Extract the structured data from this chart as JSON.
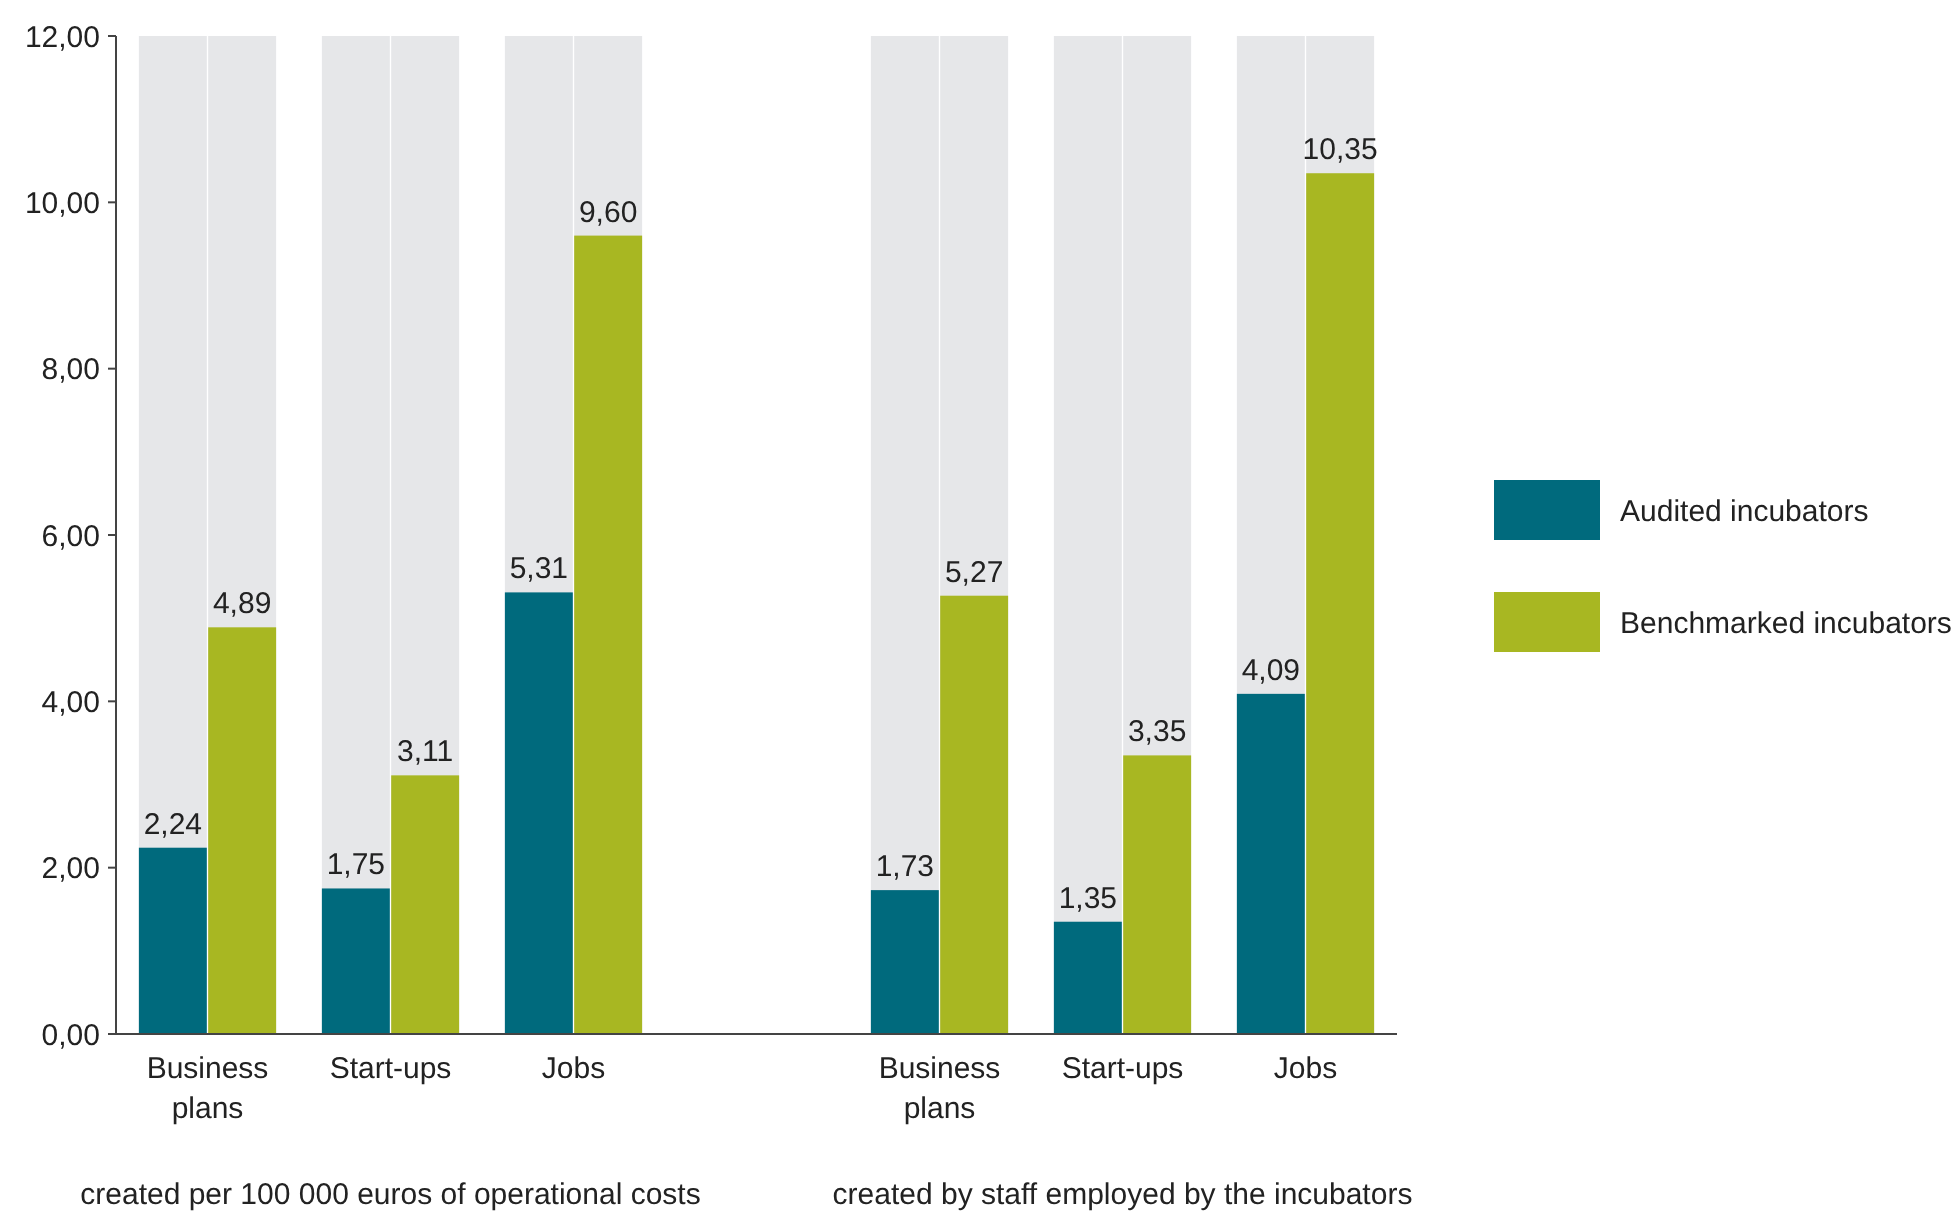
{
  "chart_data": {
    "type": "bar",
    "categories": [
      "Business plans",
      "Start-ups",
      "Jobs",
      null,
      "Business plans",
      "Start-ups",
      "Jobs"
    ],
    "series": [
      {
        "name": "Audited incubators",
        "color": "#006a7d",
        "values": [
          2.24,
          1.75,
          5.31,
          null,
          1.73,
          1.35,
          4.09
        ],
        "value_labels": [
          "2,24",
          "1,75",
          "5,31",
          null,
          "1,73",
          "1,35",
          "4,09"
        ]
      },
      {
        "name": "Benchmarked incubators",
        "color": "#a8b722",
        "values": [
          4.89,
          3.11,
          9.6,
          null,
          5.27,
          3.35,
          10.35
        ],
        "value_labels": [
          "4,89",
          "3,11",
          "9,60",
          null,
          "5,27",
          "3,35",
          "10,35"
        ]
      }
    ],
    "ylim": [
      0,
      12
    ],
    "yticks": [
      {
        "value": 0,
        "label": "0,00"
      },
      {
        "value": 2,
        "label": "2,00"
      },
      {
        "value": 4,
        "label": "4,00"
      },
      {
        "value": 6,
        "label": "6,00"
      },
      {
        "value": 8,
        "label": "8,00"
      },
      {
        "value": 10,
        "label": "10,00"
      },
      {
        "value": 12,
        "label": "12,00"
      }
    ],
    "annotations": [
      "created per 100 000 euros of operational costs",
      "created by staff employed by the incubators"
    ],
    "legend": "right"
  }
}
